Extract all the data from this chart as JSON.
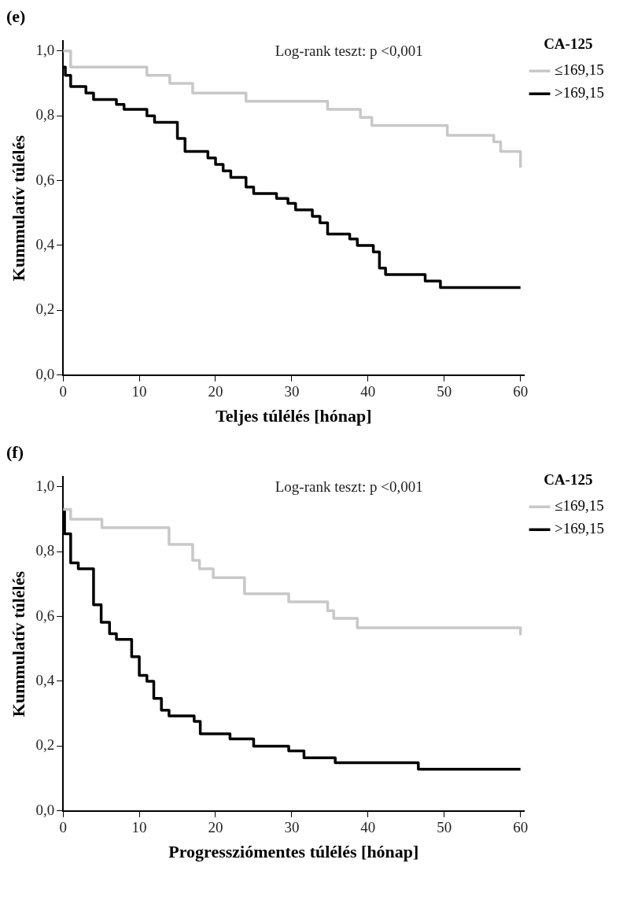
{
  "chart_data": [
    {
      "type": "step",
      "xlabel": "Teljes túlélés [hónap]",
      "ylabel": "Kummulatív túlélés",
      "legend_title": "CA-125",
      "legend": "right",
      "grid": false,
      "marker": "none",
      "annotations": [
        "(e)",
        "Log-rank teszt: p <0,001"
      ],
      "xlim": [
        0,
        60.5
      ],
      "xticks": [
        0,
        10,
        20,
        30,
        40,
        50,
        60
      ],
      "ylim": [
        0,
        1.03
      ],
      "yticks": [
        {
          "value": 0,
          "label": "0,0"
        },
        {
          "value": 0.2,
          "label": "0,2"
        },
        {
          "value": 0.4,
          "label": "0,4"
        },
        {
          "value": 0.6,
          "label": "0,6"
        },
        {
          "value": 0.8,
          "label": "0,8"
        },
        {
          "value": 1,
          "label": "1,0"
        }
      ],
      "series": [
        {
          "name": "≤169,15",
          "color": "#c8c8c8",
          "x": [
            0,
            1,
            11,
            14,
            17,
            24,
            34.7,
            39,
            40.5,
            50.4,
            56.5,
            57.4,
            60
          ],
          "values": [
            1.0,
            0.95,
            0.925,
            0.9,
            0.87,
            0.845,
            0.82,
            0.795,
            0.77,
            0.74,
            0.72,
            0.69,
            0.64
          ]
        },
        {
          "name": ">169,15",
          "color": "#000000",
          "x": [
            0,
            0.3,
            1,
            3,
            4,
            7,
            8,
            11,
            12,
            15,
            16,
            19,
            20,
            21,
            22,
            24,
            25,
            28,
            29.5,
            30.5,
            32.7,
            33.7,
            34.7,
            37.6,
            38.6,
            40.7,
            41.5,
            42.3,
            47.5,
            49.5,
            60
          ],
          "values": [
            0.95,
            0.925,
            0.89,
            0.87,
            0.85,
            0.835,
            0.82,
            0.8,
            0.78,
            0.73,
            0.69,
            0.67,
            0.65,
            0.63,
            0.61,
            0.58,
            0.56,
            0.545,
            0.53,
            0.51,
            0.49,
            0.47,
            0.435,
            0.42,
            0.4,
            0.38,
            0.33,
            0.31,
            0.29,
            0.27,
            0.27
          ]
        }
      ]
    },
    {
      "type": "step",
      "xlabel": "Progressziómentes túlélés [hónap]",
      "ylabel": "Kummulatív túlélés",
      "legend_title": "CA-125",
      "legend": "right",
      "grid": false,
      "marker": "none",
      "annotations": [
        "(f)",
        "Log-rank teszt: p <0,001"
      ],
      "xlim": [
        0,
        60.5
      ],
      "xticks": [
        0,
        10,
        20,
        30,
        40,
        50,
        60
      ],
      "ylim": [
        0,
        1.03
      ],
      "yticks": [
        {
          "value": 0,
          "label": "0,0"
        },
        {
          "value": 0.2,
          "label": "0,2"
        },
        {
          "value": 0.4,
          "label": "0,4"
        },
        {
          "value": 0.6,
          "label": "0,6"
        },
        {
          "value": 0.8,
          "label": "0,8"
        },
        {
          "value": 1,
          "label": "1,0"
        }
      ],
      "series": [
        {
          "name": "≤169,15",
          "color": "#c8c8c8",
          "x": [
            0,
            1,
            5.1,
            13.9,
            17,
            17.9,
            19.7,
            23.8,
            29.6,
            34.7,
            35.5,
            38.6,
            60
          ],
          "values": [
            0.93,
            0.9,
            0.874,
            0.822,
            0.773,
            0.747,
            0.72,
            0.67,
            0.645,
            0.618,
            0.594,
            0.565,
            0.542
          ]
        },
        {
          "name": ">169,15",
          "color": "#000000",
          "x": [
            0,
            0.2,
            1,
            2,
            4,
            5,
            6.1,
            7,
            9,
            10,
            11,
            11.9,
            12.9,
            13.9,
            17.2,
            18,
            21.9,
            25,
            29.6,
            31.6,
            35.7,
            46.6,
            60
          ],
          "values": [
            0.93,
            0.855,
            0.765,
            0.747,
            0.636,
            0.582,
            0.547,
            0.529,
            0.476,
            0.418,
            0.4,
            0.347,
            0.311,
            0.293,
            0.276,
            0.238,
            0.222,
            0.2,
            0.185,
            0.164,
            0.149,
            0.129,
            0.129
          ]
        }
      ]
    }
  ]
}
